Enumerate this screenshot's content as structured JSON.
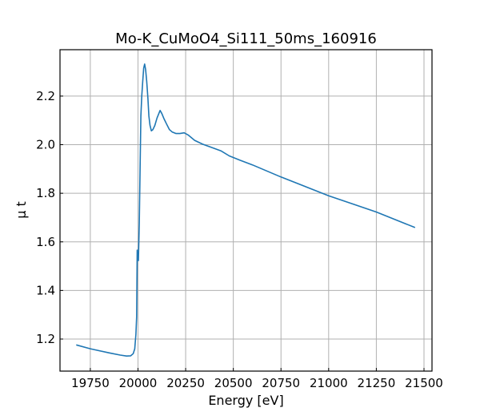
{
  "chart_data": {
    "type": "line",
    "title": "Mo-K_CuMoO4_Si111_50ms_160916",
    "xlabel": "Energy [eV]",
    "ylabel": "μ t",
    "xlim": [
      19591,
      21542
    ],
    "ylim": [
      1.068,
      2.391
    ],
    "xticks": [
      19750,
      20000,
      20250,
      20500,
      20750,
      21000,
      21250,
      21500
    ],
    "yticks": [
      1.2,
      1.4,
      1.6,
      1.8,
      2.0,
      2.2
    ],
    "xtick_labels": [
      "19750",
      "20000",
      "20250",
      "20500",
      "20750",
      "21000",
      "21250",
      "21500"
    ],
    "ytick_labels": [
      "1.2",
      "1.4",
      "1.6",
      "1.8",
      "2.0",
      "2.2"
    ],
    "grid": true,
    "color": "#1f77b4",
    "series": [
      {
        "x": [
          19676,
          19750,
          19850,
          19907,
          19940,
          19962,
          19975,
          19983,
          19989,
          19993,
          19996,
          19999,
          20002,
          20007,
          20011,
          20015,
          20020,
          20025,
          20030,
          20035,
          20040,
          20046,
          20052,
          20057,
          20063,
          20070,
          20078,
          20088,
          20100,
          20116,
          20125,
          20137,
          20150,
          20165,
          20180,
          20200,
          20220,
          20242,
          20263,
          20297,
          20339,
          20381,
          20437,
          20479,
          20535,
          20600,
          20750,
          21000,
          21250,
          21453
        ],
        "y": [
          1.176,
          1.16,
          1.143,
          1.134,
          1.13,
          1.131,
          1.14,
          1.159,
          1.22,
          1.291,
          1.566,
          1.53,
          1.523,
          1.676,
          1.9,
          2.118,
          2.2,
          2.26,
          2.315,
          2.332,
          2.31,
          2.26,
          2.19,
          2.118,
          2.08,
          2.057,
          2.062,
          2.079,
          2.11,
          2.141,
          2.128,
          2.106,
          2.085,
          2.062,
          2.052,
          2.046,
          2.046,
          2.049,
          2.04,
          2.018,
          2.002,
          1.99,
          1.974,
          1.954,
          1.936,
          1.917,
          1.867,
          1.79,
          1.723,
          1.659
        ]
      }
    ]
  }
}
